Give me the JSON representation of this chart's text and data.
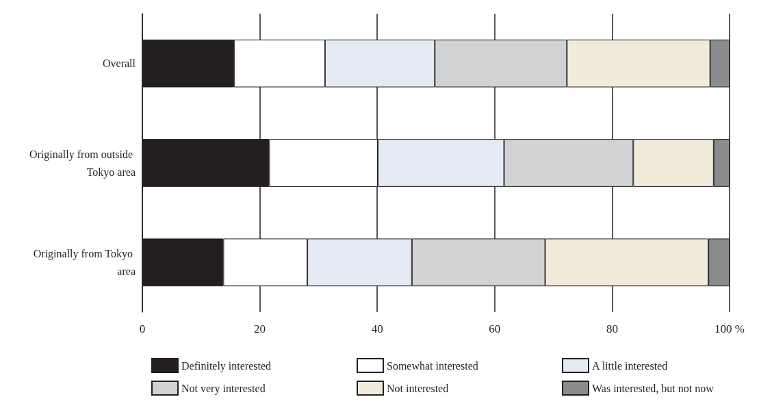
{
  "chart_data": {
    "type": "bar",
    "orientation": "horizontal",
    "stacked": true,
    "categories": [
      "Overall",
      "Originally from outside Tokyo area",
      "Originally from Tokyo area"
    ],
    "series": [
      {
        "name": "Definitely interested",
        "color": "#231f20",
        "values": [
          15.6,
          21.6,
          13.8
        ]
      },
      {
        "name": "Somewhat interested",
        "color": "#ffffff",
        "values": [
          15.5,
          18.5,
          14.3
        ]
      },
      {
        "name": "A little interested",
        "color": "#e4ebf4",
        "values": [
          18.7,
          21.5,
          17.8
        ]
      },
      {
        "name": "Not very interested",
        "color": "#d1d2d4",
        "values": [
          22.5,
          22.0,
          22.7
        ]
      },
      {
        "name": "Not interested",
        "color": "#f2eadb",
        "values": [
          24.4,
          13.7,
          27.8
        ]
      },
      {
        "name": "Was interested, but not now",
        "color": "#8a8b8d",
        "values": [
          3.3,
          2.7,
          3.6
        ]
      }
    ],
    "xlim": [
      0,
      100
    ],
    "xticks": [
      0,
      20,
      40,
      60,
      80,
      {
        "value": 100,
        "label": "100 %"
      }
    ],
    "grid": "x",
    "legend": "bottom"
  }
}
